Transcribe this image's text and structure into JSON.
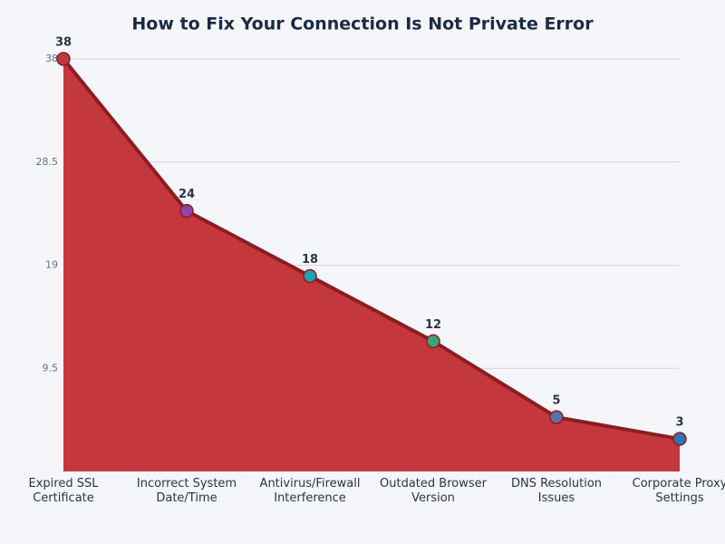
{
  "chart_data": {
    "type": "area",
    "title": "How to Fix Your Connection Is Not Private Error",
    "categories": [
      "Expired SSL Certificate",
      "Incorrect System Date/Time",
      "Antivirus/Firewall Interference",
      "Outdated Browser Version",
      "DNS Resolution Issues",
      "Corporate Proxy Settings"
    ],
    "values": [
      38,
      24,
      18,
      12,
      5,
      3
    ],
    "color": "#c4373c",
    "line_color": "#8b1d22",
    "point_colors": [
      "#c0393f",
      "#8e44ad",
      "#1fa2b5",
      "#3aa57a",
      "#5b73b0",
      "#2e74b5"
    ],
    "ylim": [
      0,
      38
    ],
    "yticks": [
      9.5,
      19,
      28.5,
      38
    ],
    "grid": true
  }
}
